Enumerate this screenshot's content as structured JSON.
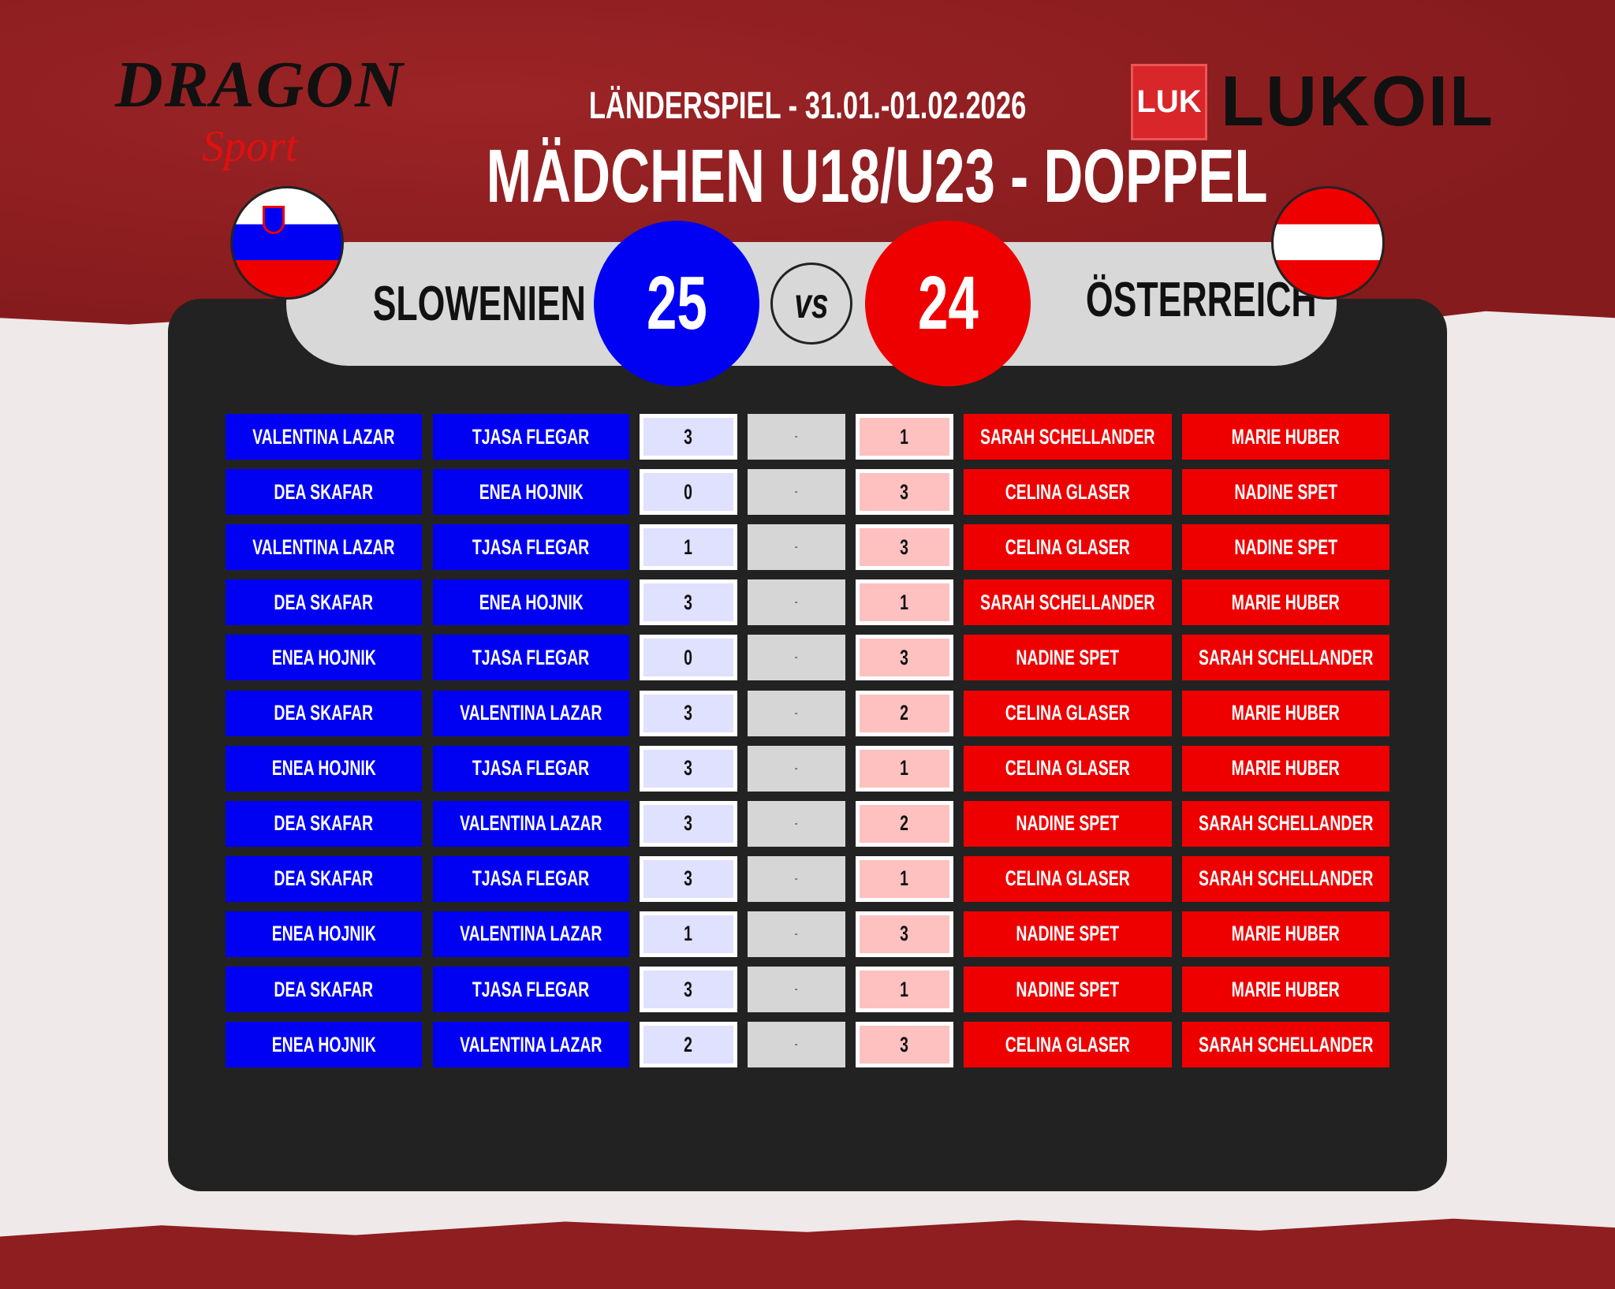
{
  "header": {
    "subtitle": "LÄNDERSPIEL - 31.01.-01.02.2026",
    "title": "MÄDCHEN U18/U23 - DOPPEL",
    "logo_left": "DRAGON Sport",
    "logo_right": "LUKOIL",
    "logo_right_mark": "LUK"
  },
  "teams": {
    "home": "SLOWENIEN",
    "away": "ÖSTERREICH",
    "home_score": "25",
    "away_score": "24",
    "vs": "VS",
    "home_color": "#0000f2",
    "away_color": "#ee0000"
  },
  "matches": [
    {
      "h1": "VALENTINA LAZAR",
      "h2": "TJASA FLEGAR",
      "hs": "3",
      "sep": "-",
      "as": "1",
      "a1": "SARAH SCHELLANDER",
      "a2": "MARIE HUBER"
    },
    {
      "h1": "DEA SKAFAR",
      "h2": "ENEA HOJNIK",
      "hs": "0",
      "sep": "-",
      "as": "3",
      "a1": "CELINA GLASER",
      "a2": "NADINE SPET"
    },
    {
      "h1": "VALENTINA LAZAR",
      "h2": "TJASA FLEGAR",
      "hs": "1",
      "sep": "-",
      "as": "3",
      "a1": "CELINA GLASER",
      "a2": "NADINE SPET"
    },
    {
      "h1": "DEA SKAFAR",
      "h2": "ENEA HOJNIK",
      "hs": "3",
      "sep": "-",
      "as": "1",
      "a1": "SARAH SCHELLANDER",
      "a2": "MARIE HUBER"
    },
    {
      "h1": "ENEA HOJNIK",
      "h2": "TJASA FLEGAR",
      "hs": "0",
      "sep": "-",
      "as": "3",
      "a1": "NADINE SPET",
      "a2": "SARAH SCHELLANDER"
    },
    {
      "h1": "DEA SKAFAR",
      "h2": "VALENTINA LAZAR",
      "hs": "3",
      "sep": "-",
      "as": "2",
      "a1": "CELINA GLASER",
      "a2": "MARIE HUBER"
    },
    {
      "h1": "ENEA HOJNIK",
      "h2": "TJASA FLEGAR",
      "hs": "3",
      "sep": "-",
      "as": "1",
      "a1": "CELINA GLASER",
      "a2": "MARIE HUBER"
    },
    {
      "h1": "DEA SKAFAR",
      "h2": "VALENTINA LAZAR",
      "hs": "3",
      "sep": "-",
      "as": "2",
      "a1": "NADINE SPET",
      "a2": "SARAH SCHELLANDER"
    },
    {
      "h1": "DEA SKAFAR",
      "h2": "TJASA FLEGAR",
      "hs": "3",
      "sep": "-",
      "as": "1",
      "a1": "CELINA GLASER",
      "a2": "SARAH SCHELLANDER"
    },
    {
      "h1": "ENEA HOJNIK",
      "h2": "VALENTINA LAZAR",
      "hs": "1",
      "sep": "-",
      "as": "3",
      "a1": "NADINE SPET",
      "a2": "MARIE HUBER"
    },
    {
      "h1": "DEA SKAFAR",
      "h2": "TJASA FLEGAR",
      "hs": "3",
      "sep": "-",
      "as": "1",
      "a1": "NADINE SPET",
      "a2": "MARIE HUBER"
    },
    {
      "h1": "ENEA HOJNIK",
      "h2": "VALENTINA LAZAR",
      "hs": "2",
      "sep": "-",
      "as": "3",
      "a1": "CELINA GLASER",
      "a2": "SARAH SCHELLANDER"
    }
  ]
}
